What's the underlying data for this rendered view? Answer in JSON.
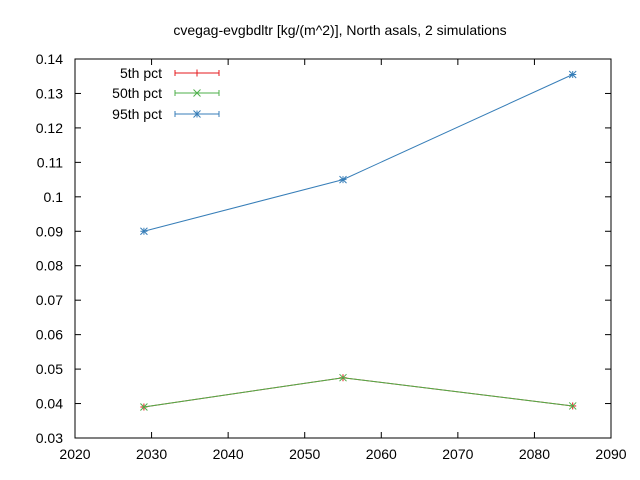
{
  "chart_data": {
    "type": "line",
    "title": "cvegag-evgbdltr [kg/(m^2)], North asals, 2 simulations",
    "xlabel": "",
    "ylabel": "",
    "xlim": [
      2020,
      2090
    ],
    "ylim": [
      0.03,
      0.14
    ],
    "xticks": [
      2020,
      2030,
      2040,
      2050,
      2060,
      2070,
      2080,
      2090
    ],
    "yticks": [
      0.03,
      0.04,
      0.05,
      0.06,
      0.07,
      0.08,
      0.09,
      0.1,
      0.11,
      0.12,
      0.13,
      0.14
    ],
    "ytick_labels": [
      "0.03",
      "0.04",
      "0.05",
      "0.06",
      "0.07",
      "0.08",
      "0.09",
      "0.1",
      "0.11",
      "0.12",
      "0.13",
      "0.14"
    ],
    "x": [
      2029,
      2055,
      2085
    ],
    "series": [
      {
        "name": "5th pct",
        "color": "#e41a1c",
        "marker": "plus",
        "values": [
          0.039,
          0.0475,
          0.0393
        ]
      },
      {
        "name": "50th pct",
        "color": "#4daf4a",
        "marker": "x",
        "values": [
          0.039,
          0.0475,
          0.0393
        ]
      },
      {
        "name": "95th pct",
        "color": "#377eb8",
        "marker": "star",
        "values": [
          0.09,
          0.105,
          0.1355
        ]
      }
    ],
    "legend_position": "top-left",
    "grid": false
  }
}
